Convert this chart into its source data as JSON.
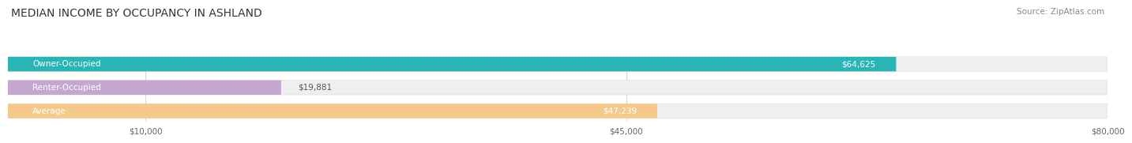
{
  "title": "MEDIAN INCOME BY OCCUPANCY IN ASHLAND",
  "source": "Source: ZipAtlas.com",
  "categories": [
    "Owner-Occupied",
    "Renter-Occupied",
    "Average"
  ],
  "values": [
    64625,
    19881,
    47239
  ],
  "labels": [
    "$64,625",
    "$19,881",
    "$47,239"
  ],
  "bar_colors": [
    "#29b5b5",
    "#c4a8d0",
    "#f5c98a"
  ],
  "bar_bg_color": "#efefef",
  "bar_border_color": "#e0e0e0",
  "xmax": 80000,
  "xticks": [
    10000,
    45000,
    80000
  ],
  "xtick_labels": [
    "$10,000",
    "$45,000",
    "$80,000"
  ],
  "title_fontsize": 10,
  "source_fontsize": 7.5,
  "label_fontsize": 7.5,
  "category_fontsize": 7.5,
  "value_label_inside": [
    true,
    false,
    true
  ],
  "value_label_color_inside": "#ffffff",
  "value_label_color_outside": "#555555"
}
